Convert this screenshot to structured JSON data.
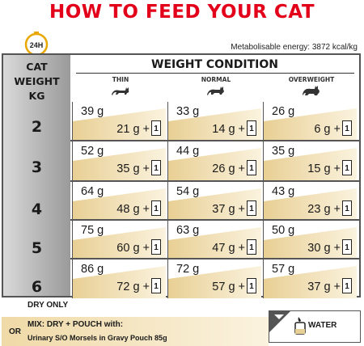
{
  "title": "HOW TO FEED YOUR CAT",
  "clock_label": "24H",
  "energy": "Metabolisable energy: 3872 kcal/kg",
  "weight_header": [
    "CAT",
    "WEIGHT",
    "KG"
  ],
  "condition_title": "WEIGHT CONDITION",
  "columns": [
    "THIN",
    "NORMAL",
    "OVERWEIGHT"
  ],
  "pouch_count": "1",
  "rows": [
    {
      "kg": "2",
      "cells": [
        {
          "dry": "39 g",
          "mix": "21 g  +"
        },
        {
          "dry": "33 g",
          "mix": "14 g  +"
        },
        {
          "dry": "26 g",
          "mix": "6 g  +"
        }
      ]
    },
    {
      "kg": "3",
      "cells": [
        {
          "dry": "52 g",
          "mix": "35 g  +"
        },
        {
          "dry": "44 g",
          "mix": "26 g  +"
        },
        {
          "dry": "35 g",
          "mix": "15 g  +"
        }
      ]
    },
    {
      "kg": "4",
      "cells": [
        {
          "dry": "64 g",
          "mix": "48 g  +"
        },
        {
          "dry": "54 g",
          "mix": "37 g  +"
        },
        {
          "dry": "43 g",
          "mix": "23 g  +"
        }
      ]
    },
    {
      "kg": "5",
      "cells": [
        {
          "dry": "75 g",
          "mix": "60 g  +"
        },
        {
          "dry": "63 g",
          "mix": "47 g  +"
        },
        {
          "dry": "50 g",
          "mix": "30 g  +"
        }
      ]
    },
    {
      "kg": "6",
      "cells": [
        {
          "dry": "86 g",
          "mix": "72 g  +"
        },
        {
          "dry": "72 g",
          "mix": "57 g  +"
        },
        {
          "dry": "57 g",
          "mix": "37 g  +"
        }
      ]
    }
  ],
  "legend": {
    "dry_only": "DRY ONLY",
    "or": "OR",
    "mix": "MIX: DRY + POUCH with:",
    "recipe": "Urinary S/O Morsels in Gravy Pouch 85g",
    "water": "WATER"
  },
  "colors": {
    "title": "#e2001a",
    "gold": "#e8cf94",
    "gold_light": "#fbf3df"
  }
}
